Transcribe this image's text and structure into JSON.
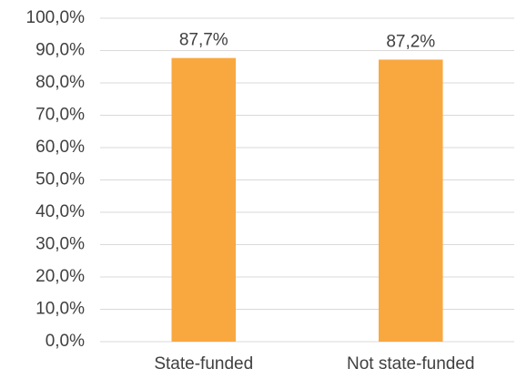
{
  "chart_data": {
    "type": "bar",
    "categories": [
      "State-funded",
      "Not state-funded"
    ],
    "values": [
      87.7,
      87.2
    ],
    "value_labels": [
      "87,7%",
      "87,2%"
    ],
    "color": "#f9a83f",
    "ylim": [
      0,
      100
    ],
    "yticks": [
      {
        "value": 0,
        "label": "0,0%"
      },
      {
        "value": 10,
        "label": "10,0%"
      },
      {
        "value": 20,
        "label": "20,0%"
      },
      {
        "value": 30,
        "label": "30,0%"
      },
      {
        "value": 40,
        "label": "40,0%"
      },
      {
        "value": 50,
        "label": "50,0%"
      },
      {
        "value": 60,
        "label": "60,0%"
      },
      {
        "value": 70,
        "label": "70,0%"
      },
      {
        "value": 80,
        "label": "80,0%"
      },
      {
        "value": 90,
        "label": "90,0%"
      },
      {
        "value": 100,
        "label": "100,0%"
      }
    ],
    "grid": true
  }
}
